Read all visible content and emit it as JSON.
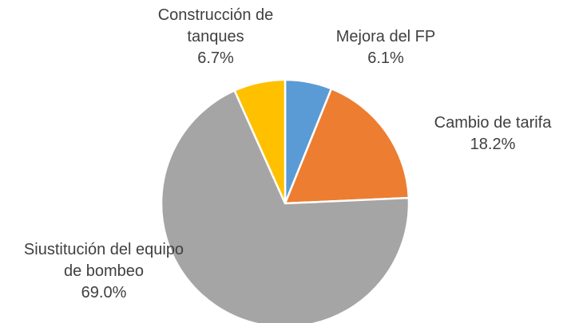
{
  "chart_data": {
    "type": "pie",
    "categories": [
      "Mejora del FP",
      "Cambio de tarifa",
      "Siustitución del equipo de bombeo",
      "Construcción de tanques"
    ],
    "values": [
      6.1,
      18.2,
      69.0,
      6.7
    ],
    "value_labels": [
      "6.1%",
      "18.2%",
      "69.0%",
      "6.7%"
    ],
    "colors": [
      "#5b9bd5",
      "#ed7d31",
      "#a5a5a5",
      "#ffc000"
    ]
  }
}
